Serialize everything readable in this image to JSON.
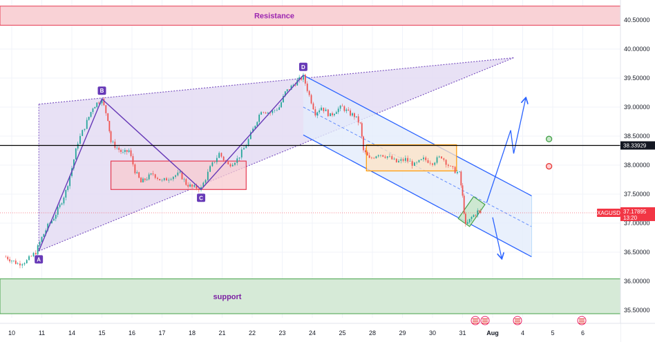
{
  "chart_data": {
    "type": "line",
    "title": "",
    "xlabel": "",
    "ylabel": "",
    "ylim": [
      35.41,
      40.62
    ],
    "y_ticks": [
      "40.50000",
      "40.00000",
      "39.50000",
      "39.00000",
      "38.50000",
      "38.00000",
      "37.50000",
      "37.00000",
      "36.50000",
      "36.00000",
      "35.50000"
    ],
    "x_ticks": [
      "10",
      "11",
      "14",
      "15",
      "16",
      "17",
      "18",
      "21",
      "22",
      "23",
      "24",
      "25",
      "28",
      "29",
      "30",
      "31",
      "Aug",
      "4",
      "5",
      "6"
    ],
    "symbol": "XAGUSD",
    "last_price": "37.17895",
    "countdown": "13:20",
    "horizontal_level": "38.33929",
    "resistance": {
      "label": "Resistance",
      "low": 40.41,
      "high": 40.74
    },
    "support": {
      "label": "support",
      "low": 35.44,
      "high": 36.04
    },
    "pattern_points": [
      {
        "label": "A",
        "x": 0.9,
        "y": 36.52
      },
      {
        "label": "B",
        "x": 3.0,
        "y": 39.14
      },
      {
        "label": "C",
        "x": 6.3,
        "y": 37.58
      },
      {
        "label": "D",
        "x": 9.7,
        "y": 39.55
      }
    ],
    "price_series": {
      "name": "",
      "points": [
        [
          -0.2,
          36.42
        ],
        [
          0.2,
          36.3
        ],
        [
          0.5,
          36.35
        ],
        [
          0.8,
          36.5
        ],
        [
          1.0,
          36.75
        ],
        [
          1.2,
          36.95
        ],
        [
          1.4,
          37.1
        ],
        [
          1.6,
          37.3
        ],
        [
          1.8,
          37.55
        ],
        [
          2.0,
          37.95
        ],
        [
          2.2,
          38.4
        ],
        [
          2.5,
          38.75
        ],
        [
          2.7,
          39.0
        ],
        [
          2.9,
          39.1
        ],
        [
          3.0,
          39.12
        ],
        [
          3.2,
          38.8
        ],
        [
          3.3,
          38.4
        ],
        [
          3.5,
          38.3
        ],
        [
          3.7,
          38.2
        ],
        [
          3.9,
          38.25
        ],
        [
          4.1,
          37.9
        ],
        [
          4.3,
          37.7
        ],
        [
          4.5,
          37.78
        ],
        [
          4.7,
          37.85
        ],
        [
          5.0,
          37.72
        ],
        [
          5.3,
          37.8
        ],
        [
          5.6,
          37.85
        ],
        [
          5.8,
          37.68
        ],
        [
          6.0,
          37.62
        ],
        [
          6.3,
          37.6
        ],
        [
          6.6,
          37.95
        ],
        [
          6.9,
          38.2
        ],
        [
          7.2,
          38.0
        ],
        [
          7.5,
          38.1
        ],
        [
          7.8,
          38.35
        ],
        [
          8.1,
          38.7
        ],
        [
          8.3,
          38.95
        ],
        [
          8.6,
          38.9
        ],
        [
          8.9,
          39.0
        ],
        [
          9.1,
          39.25
        ],
        [
          9.3,
          39.35
        ],
        [
          9.5,
          39.45
        ],
        [
          9.7,
          39.52
        ],
        [
          9.9,
          39.2
        ],
        [
          10.1,
          38.9
        ],
        [
          10.3,
          39.0
        ],
        [
          10.6,
          38.85
        ],
        [
          10.8,
          38.95
        ],
        [
          11.0,
          39.0
        ],
        [
          11.2,
          38.9
        ],
        [
          11.4,
          38.85
        ],
        [
          11.6,
          38.7
        ],
        [
          11.7,
          38.25
        ],
        [
          11.9,
          38.1
        ],
        [
          12.2,
          38.2
        ],
        [
          12.5,
          38.15
        ],
        [
          12.8,
          38.05
        ],
        [
          13.1,
          38.1
        ],
        [
          13.4,
          38.0
        ],
        [
          13.7,
          38.1
        ],
        [
          14.0,
          38.05
        ],
        [
          14.3,
          38.15
        ],
        [
          14.6,
          37.95
        ],
        [
          14.9,
          37.85
        ],
        [
          15.0,
          37.45
        ],
        [
          15.1,
          36.95
        ],
        [
          15.3,
          37.1
        ],
        [
          15.5,
          37.2
        ],
        [
          15.6,
          37.18
        ]
      ]
    },
    "rising_wedge": {
      "upper": [
        [
          0.9,
          39.05
        ],
        [
          16.7,
          39.85
        ]
      ],
      "lower": [
        [
          0.9,
          36.52
        ],
        [
          16.7,
          39.85
        ]
      ]
    },
    "falling_channel": {
      "upper": [
        [
          9.7,
          39.55
        ],
        [
          17.3,
          37.47
        ]
      ],
      "mid": [
        [
          9.7,
          39.0
        ],
        [
          17.3,
          36.94
        ]
      ],
      "lower": [
        [
          9.7,
          38.52
        ],
        [
          17.3,
          36.42
        ]
      ]
    },
    "range_boxes": [
      {
        "name": "red",
        "x": [
          3.3,
          7.8
        ],
        "y": [
          37.58,
          38.07
        ]
      },
      {
        "name": "orange",
        "x": [
          11.8,
          14.8
        ],
        "y": [
          37.9,
          38.35
        ]
      },
      {
        "name": "green",
        "x": [
          14.9,
          15.7
        ],
        "y": [
          36.95,
          37.45
        ]
      }
    ],
    "scenario_arrows": [
      {
        "name": "bullish",
        "points": [
          [
            15.8,
            37.35
          ],
          [
            16.6,
            38.6
          ],
          [
            16.7,
            38.2
          ],
          [
            17.1,
            39.15
          ]
        ]
      },
      {
        "name": "bearish",
        "points": [
          [
            16.0,
            37.1
          ],
          [
            16.3,
            36.4
          ]
        ]
      }
    ],
    "signal_markers": [
      {
        "color": "#43a047",
        "x": 17.6,
        "y": 38.45
      },
      {
        "color": "#e53935",
        "x": 17.6,
        "y": 37.98
      }
    ],
    "colors": {
      "resistance_fill": "#f9d2d6",
      "resistance_border": "#e53950",
      "support_fill": "#d6ead7",
      "support_border": "#43a047",
      "wedge_fill": "#e4dcf3",
      "wedge_line": "#7e57c2",
      "channel_line": "#2962ff",
      "channel_fill": "#e3ecfb",
      "candle_up": "#26a69a",
      "candle_down": "#ef5350",
      "price_tag": "#f23645",
      "level_line": "#000000"
    },
    "grid": true
  }
}
